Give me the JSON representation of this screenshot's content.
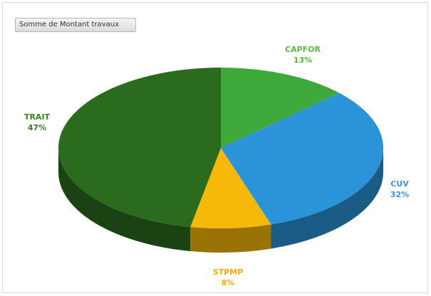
{
  "field_button": "Somme de Montant travaux",
  "chart_data": {
    "type": "pie",
    "style": "3d",
    "title": "",
    "categories": [
      "CAPFOR",
      "CUV",
      "STPMP",
      "TRAIT"
    ],
    "values": [
      13,
      32,
      8,
      47
    ],
    "value_labels": [
      "13%",
      "32%",
      "8%",
      "47%"
    ],
    "colors": [
      "#3fa83b",
      "#2b94d8",
      "#f8b80a",
      "#2a6b1e"
    ],
    "label_colors": [
      "#5fb544",
      "#3f95d0",
      "#f2ad0f",
      "#3e7e25"
    ],
    "legend": "none"
  }
}
